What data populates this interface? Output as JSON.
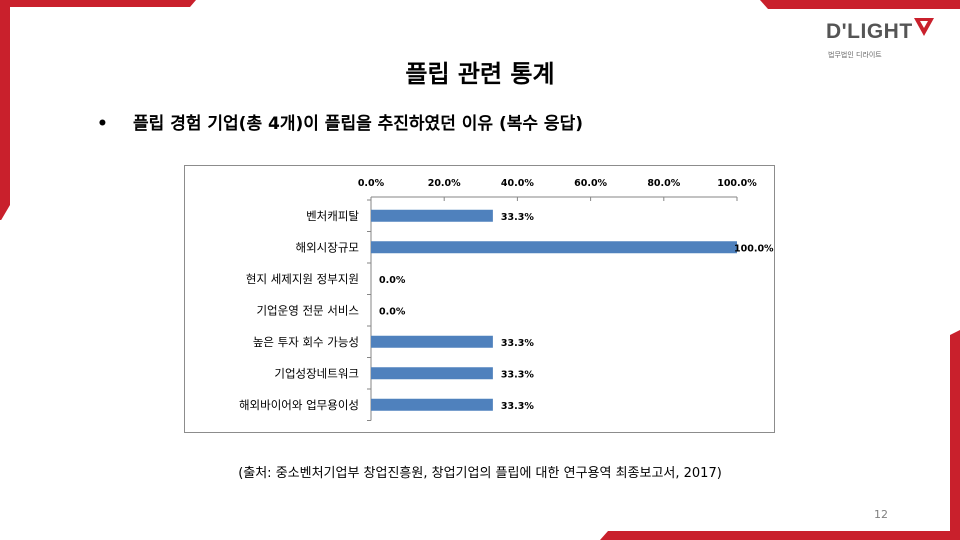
{
  "header": {
    "logo_text": "D'LIGHT",
    "logo_sub": "법무법인 디라이트"
  },
  "page_title": "플립 관련 통계",
  "bullet": {
    "symbol": "•",
    "text": "플립 경험 기업(총 4개)이 플립을 추진하였던 이유 (복수 응답)"
  },
  "chart_data": {
    "type": "bar",
    "orientation": "horizontal",
    "categories": [
      "벤처캐피탈",
      "해외시장규모",
      "현지 세제지원 정부지원",
      "기업운영 전문 서비스",
      "높은 투자 회수 가능성",
      "기업성장네트워크",
      "해외바이어와 업무용이성"
    ],
    "values": [
      33.3,
      100.0,
      0.0,
      0.0,
      33.3,
      33.3,
      33.3
    ],
    "data_labels": [
      "33.3%",
      "100.0%",
      "0.0%",
      "0.0%",
      "33.3%",
      "33.3%",
      "33.3%"
    ],
    "x_ticks": [
      0,
      20,
      40,
      60,
      80,
      100
    ],
    "x_tick_labels": [
      "0.0%",
      "20.0%",
      "40.0%",
      "60.0%",
      "80.0%",
      "100.0%"
    ],
    "xlim": [
      0,
      100
    ],
    "x_axis_position": "top",
    "grid": false,
    "legend": "none",
    "bar_color": "#4f81bd",
    "title": "",
    "xlabel": "",
    "ylabel": ""
  },
  "source_note": "(출처: 중소벤처기업부 창업진흥원, 창업기업의 플립에 대한 연구용역 최종보고서, 2017)",
  "page_number": "12",
  "colors": {
    "accent_red": "#c9202c",
    "bar": "#4f81bd"
  }
}
